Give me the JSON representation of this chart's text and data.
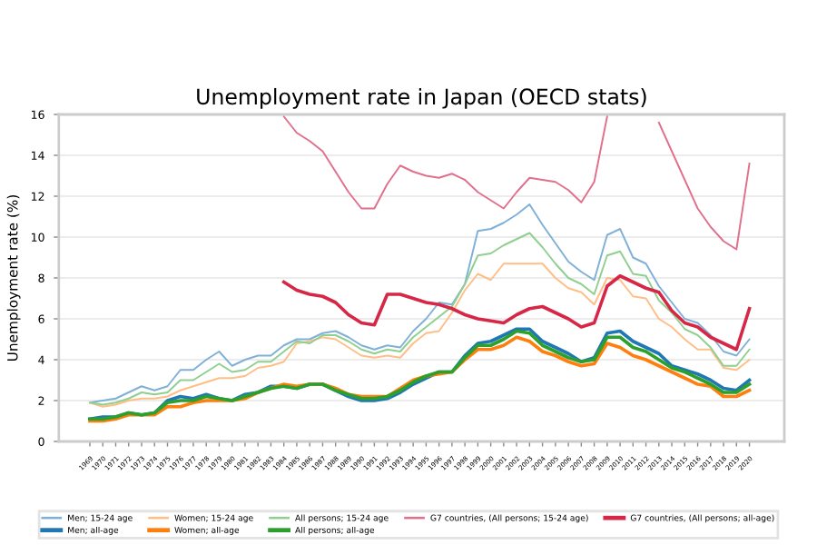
{
  "chart_data": {
    "type": "line",
    "title": "Unemployment rate in Japan (OECD stats)",
    "ylabel": "Unemployment rate (%)",
    "categories": [
      "1969",
      "1970",
      "1971",
      "1972",
      "1973",
      "1974",
      "1975",
      "1976",
      "1977",
      "1978",
      "1979",
      "1980",
      "1981",
      "1982",
      "1983",
      "1984",
      "1985",
      "1986",
      "1987",
      "1988",
      "1989",
      "1990",
      "1991",
      "1992",
      "1993",
      "1994",
      "1995",
      "1996",
      "1997",
      "1998",
      "1999",
      "2000",
      "2001",
      "2002",
      "2003",
      "2004",
      "2005",
      "2006",
      "2007",
      "2008",
      "2009",
      "2010",
      "2011",
      "2012",
      "2013",
      "2014",
      "2015",
      "2016",
      "2017",
      "2018",
      "2019",
      "2020"
    ],
    "ylim": [
      0,
      16
    ],
    "yticks": [
      0,
      2,
      4,
      6,
      8,
      10,
      12,
      14,
      16
    ],
    "grid": "y",
    "legend": "bottom",
    "marker": "none",
    "line_style": "solid",
    "series": [
      {
        "name": "Men; 15-24 age",
        "color": "#7fb0d8",
        "values": [
          1.9,
          2.0,
          2.1,
          2.4,
          2.7,
          2.5,
          2.7,
          3.5,
          3.5,
          4.0,
          4.4,
          3.7,
          4.0,
          4.2,
          4.2,
          4.7,
          5.0,
          5.0,
          5.3,
          5.4,
          5.1,
          4.7,
          4.5,
          4.7,
          4.6,
          5.4,
          6.0,
          6.8,
          6.7,
          7.7,
          10.3,
          10.4,
          10.7,
          11.1,
          11.6,
          10.6,
          9.7,
          8.8,
          8.3,
          7.9,
          10.1,
          10.4,
          9.0,
          8.7,
          7.6,
          6.8,
          6.0,
          5.8,
          5.2,
          4.4,
          4.2,
          5.0
        ]
      },
      {
        "name": "Men; all-age",
        "color": "#1f77b4",
        "values": [
          1.1,
          1.2,
          1.2,
          1.4,
          1.3,
          1.4,
          2.0,
          2.2,
          2.1,
          2.3,
          2.1,
          2.0,
          2.3,
          2.4,
          2.7,
          2.7,
          2.6,
          2.8,
          2.8,
          2.5,
          2.2,
          2.0,
          2.0,
          2.1,
          2.4,
          2.8,
          3.1,
          3.4,
          3.4,
          4.2,
          4.8,
          4.9,
          5.2,
          5.5,
          5.5,
          4.9,
          4.6,
          4.3,
          3.9,
          4.1,
          5.3,
          5.4,
          4.9,
          4.6,
          4.3,
          3.7,
          3.5,
          3.3,
          3.0,
          2.6,
          2.5,
          3.0
        ]
      },
      {
        "name": "Women; 15-24 age",
        "color": "#ffbe86",
        "values": [
          1.9,
          1.7,
          1.8,
          2.0,
          2.1,
          2.1,
          2.2,
          2.5,
          2.7,
          2.9,
          3.1,
          3.1,
          3.2,
          3.6,
          3.7,
          3.9,
          4.8,
          4.9,
          5.1,
          5.0,
          4.6,
          4.2,
          4.1,
          4.2,
          4.1,
          4.8,
          5.3,
          5.4,
          6.3,
          7.4,
          8.2,
          7.9,
          8.7,
          8.7,
          8.7,
          8.7,
          8.0,
          7.5,
          7.3,
          6.7,
          8.0,
          7.9,
          7.1,
          7.0,
          6.0,
          5.6,
          5.0,
          4.5,
          4.5,
          3.6,
          3.5,
          4.0
        ]
      },
      {
        "name": "Women; all-age",
        "color": "#ff7f0e",
        "values": [
          1.0,
          1.0,
          1.1,
          1.3,
          1.3,
          1.3,
          1.7,
          1.7,
          1.9,
          2.0,
          2.0,
          2.0,
          2.1,
          2.4,
          2.6,
          2.8,
          2.7,
          2.8,
          2.8,
          2.6,
          2.3,
          2.2,
          2.2,
          2.2,
          2.6,
          3.0,
          3.2,
          3.3,
          3.4,
          4.0,
          4.5,
          4.5,
          4.7,
          5.1,
          4.9,
          4.4,
          4.2,
          3.9,
          3.7,
          3.8,
          4.8,
          4.6,
          4.2,
          4.0,
          3.7,
          3.4,
          3.1,
          2.8,
          2.7,
          2.2,
          2.2,
          2.5
        ]
      },
      {
        "name": "All persons; 15-24 age",
        "color": "#8fcf8f",
        "values": [
          1.9,
          1.8,
          1.9,
          2.1,
          2.4,
          2.3,
          2.4,
          3.0,
          3.0,
          3.4,
          3.8,
          3.4,
          3.5,
          3.9,
          3.9,
          4.4,
          4.9,
          4.8,
          5.2,
          5.2,
          4.9,
          4.5,
          4.3,
          4.5,
          4.4,
          5.1,
          5.6,
          6.1,
          6.6,
          7.7,
          9.1,
          9.2,
          9.6,
          9.9,
          10.2,
          9.5,
          8.7,
          8.0,
          7.7,
          7.2,
          9.1,
          9.3,
          8.2,
          8.1,
          6.9,
          6.3,
          5.5,
          5.2,
          4.6,
          3.7,
          3.7,
          4.5
        ]
      },
      {
        "name": "All persons; all-age",
        "color": "#2ca02c",
        "values": [
          1.1,
          1.1,
          1.2,
          1.4,
          1.3,
          1.4,
          1.9,
          2.0,
          2.0,
          2.2,
          2.1,
          2.0,
          2.2,
          2.4,
          2.6,
          2.7,
          2.6,
          2.8,
          2.8,
          2.5,
          2.3,
          2.1,
          2.1,
          2.2,
          2.5,
          2.9,
          3.2,
          3.4,
          3.4,
          4.1,
          4.7,
          4.7,
          5.0,
          5.4,
          5.3,
          4.7,
          4.4,
          4.1,
          3.9,
          4.0,
          5.1,
          5.1,
          4.6,
          4.4,
          4.0,
          3.6,
          3.4,
          3.1,
          2.8,
          2.4,
          2.4,
          2.8
        ]
      },
      {
        "name": "G7 countries, (All persons; 15-24 age)",
        "color": "#e0708c",
        "values": [
          null,
          null,
          null,
          null,
          null,
          null,
          null,
          null,
          null,
          null,
          null,
          null,
          null,
          null,
          null,
          15.9,
          15.1,
          14.7,
          14.2,
          13.2,
          12.2,
          11.4,
          11.4,
          12.6,
          13.5,
          13.2,
          13.0,
          12.9,
          13.1,
          12.8,
          12.2,
          11.8,
          11.4,
          12.2,
          12.9,
          12.8,
          12.7,
          12.3,
          11.7,
          12.7,
          15.9,
          null,
          null,
          null,
          15.6,
          14.2,
          12.8,
          11.4,
          10.5,
          9.8,
          9.4,
          13.6
        ]
      },
      {
        "name": "G7 countries, (All persons; all-age)",
        "color": "#d62747",
        "values": [
          null,
          null,
          null,
          null,
          null,
          null,
          null,
          null,
          null,
          null,
          null,
          null,
          null,
          null,
          null,
          7.8,
          7.4,
          7.2,
          7.1,
          6.8,
          6.2,
          5.8,
          5.7,
          7.2,
          7.2,
          7.0,
          6.8,
          6.7,
          6.5,
          6.2,
          6.0,
          5.9,
          5.8,
          6.2,
          6.5,
          6.6,
          6.3,
          6.0,
          5.6,
          5.8,
          7.6,
          8.1,
          7.8,
          7.5,
          7.3,
          6.4,
          5.8,
          5.6,
          5.1,
          4.8,
          4.5,
          6.5
        ]
      }
    ]
  }
}
